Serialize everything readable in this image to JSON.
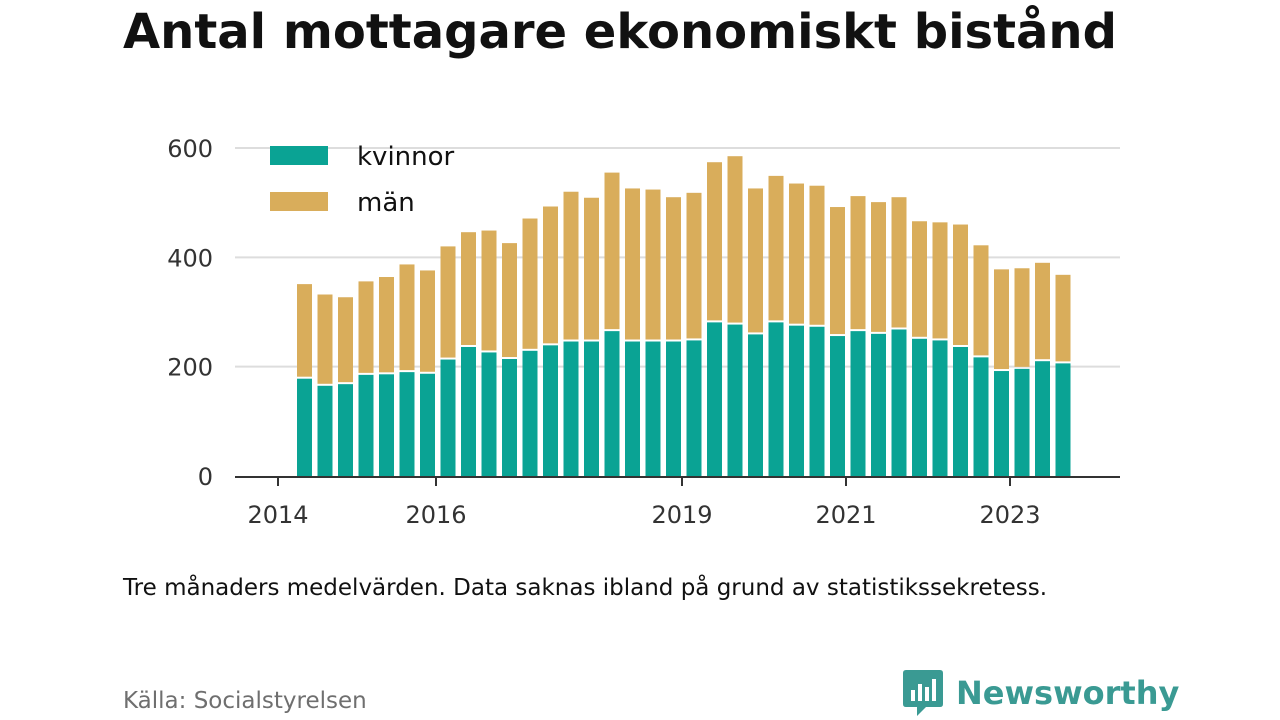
{
  "title": "Antal mottagare ekonomiskt bistånd",
  "note": "Tre månaders medelvärden. Data saknas ibland på grund av statistikssekretess.",
  "source": "Källa: Socialstyrelsen",
  "brand": {
    "name": "Newsworthy",
    "icon": "newsworthy-logo-icon",
    "color": "#3a9a93"
  },
  "colors": {
    "kvinnor": "#0aa394",
    "man": "#d9ad5b",
    "grid": "#dddddd",
    "axis": "#333333"
  },
  "chart_data": {
    "type": "bar",
    "stacked": true,
    "title": "Antal mottagare ekonomiskt bistånd",
    "xlabel": "",
    "ylabel": "",
    "ylim": [
      0,
      600
    ],
    "yticks": [
      0,
      200,
      400,
      600
    ],
    "xticks": [
      "2014",
      "2016",
      "2019",
      "2021",
      "2023"
    ],
    "grid": true,
    "legend_position": "top-left",
    "series": [
      {
        "name": "kvinnor",
        "color": "#0aa394",
        "values": [
          178,
          165,
          168,
          185,
          186,
          190,
          187,
          213,
          236,
          226,
          214,
          229,
          239,
          246,
          246,
          265,
          246,
          246,
          246,
          248,
          281,
          277,
          259,
          281,
          275,
          273,
          256,
          265,
          260,
          268,
          251,
          248,
          236,
          217,
          192,
          196,
          210,
          206
        ]
      },
      {
        "name": "män",
        "color": "#d9ad5b",
        "values": [
          173,
          167,
          159,
          171,
          178,
          197,
          189,
          207,
          210,
          223,
          212,
          242,
          254,
          274,
          263,
          290,
          280,
          278,
          264,
          270,
          293,
          308,
          267,
          268,
          260,
          258,
          236,
          247,
          241,
          242,
          215,
          216,
          224,
          205,
          186,
          184,
          180,
          162
        ]
      }
    ]
  }
}
